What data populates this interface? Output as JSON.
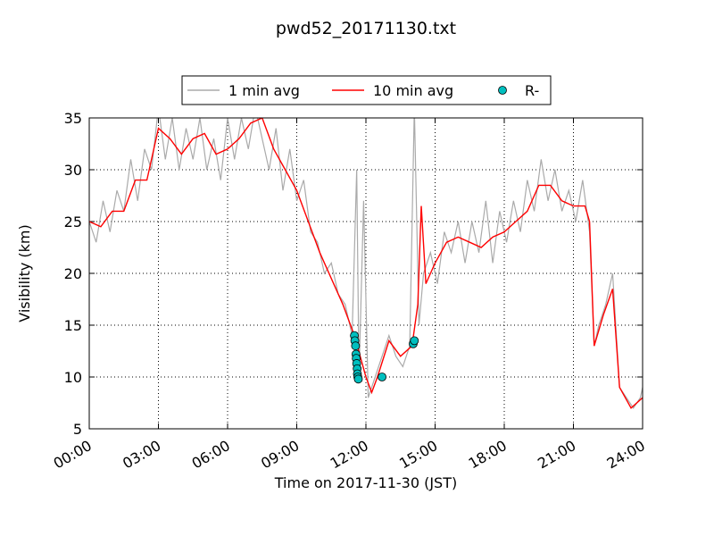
{
  "chart_data": {
    "type": "line",
    "title": "pwd52_20171130.txt",
    "xlabel": "Time on 2017-11-30 (JST)",
    "ylabel": "Visibility (km)",
    "xlim": [
      0,
      24
    ],
    "xticks": [
      {
        "value": 0,
        "label": "00:00"
      },
      {
        "value": 3,
        "label": "03:00"
      },
      {
        "value": 6,
        "label": "06:00"
      },
      {
        "value": 9,
        "label": "09:00"
      },
      {
        "value": 12,
        "label": "12:00"
      },
      {
        "value": 15,
        "label": "15:00"
      },
      {
        "value": 18,
        "label": "18:00"
      },
      {
        "value": 21,
        "label": "21:00"
      },
      {
        "value": 24,
        "label": "24:00"
      }
    ],
    "ylim": [
      5,
      35
    ],
    "yticks": [
      5,
      10,
      15,
      20,
      25,
      30,
      35
    ],
    "grid": true,
    "legend": "top",
    "series": [
      {
        "name": "1 min avg",
        "color": "#aaaaaa",
        "style": "line",
        "x": [
          0,
          0.3,
          0.6,
          0.9,
          1.2,
          1.5,
          1.8,
          2.1,
          2.4,
          2.7,
          3,
          3.3,
          3.6,
          3.9,
          4.2,
          4.5,
          4.8,
          5.1,
          5.4,
          5.7,
          6,
          6.3,
          6.6,
          6.9,
          7.2,
          7.5,
          7.8,
          8.1,
          8.4,
          8.7,
          9,
          9.3,
          9.6,
          9.9,
          10.2,
          10.5,
          10.8,
          11.1,
          11.4,
          11.6,
          11.7,
          11.9,
          12.1,
          12.4,
          12.7,
          13,
          13.3,
          13.6,
          13.9,
          14.1,
          14.3,
          14.5,
          14.8,
          15.1,
          15.4,
          15.7,
          16,
          16.3,
          16.6,
          16.9,
          17.2,
          17.5,
          17.8,
          18.1,
          18.4,
          18.7,
          19,
          19.3,
          19.6,
          19.9,
          20.2,
          20.5,
          20.8,
          21.1,
          21.4,
          21.7,
          21.9,
          22.1,
          22.4,
          22.7,
          23,
          23.3,
          23.6,
          23.9,
          24
        ],
        "values": [
          25,
          23,
          27,
          24,
          28,
          26,
          31,
          27,
          32,
          30,
          36,
          31,
          35,
          30,
          34,
          31,
          35,
          30,
          33,
          29,
          35,
          31,
          35,
          32,
          36,
          33,
          30,
          34,
          28,
          32,
          27,
          29,
          24,
          23,
          20,
          21,
          18,
          17,
          14,
          30,
          10,
          27,
          8,
          10,
          12,
          14,
          12,
          11,
          13,
          36,
          15,
          20,
          22,
          19,
          24,
          22,
          25,
          21,
          25,
          22,
          27,
          21,
          26,
          23,
          27,
          24,
          29,
          26,
          31,
          27,
          30,
          26,
          28,
          25,
          29,
          24,
          13,
          15,
          17,
          20,
          9,
          8,
          7,
          8,
          9
        ]
      },
      {
        "name": "10 min avg",
        "color": "#ff0000",
        "style": "line",
        "x": [
          0,
          0.5,
          1,
          1.5,
          2,
          2.5,
          3,
          3.5,
          4,
          4.5,
          5,
          5.5,
          6,
          6.5,
          7,
          7.5,
          8,
          8.5,
          9,
          9.5,
          10,
          10.5,
          11,
          11.5,
          12,
          12.25,
          12.5,
          13,
          13.5,
          14,
          14.25,
          14.4,
          14.6,
          15,
          15.5,
          16,
          16.5,
          17,
          17.5,
          18,
          18.5,
          19,
          19.5,
          20,
          20.5,
          21,
          21.5,
          21.7,
          21.9,
          22.3,
          22.7,
          23,
          23.5,
          24
        ],
        "values": [
          25,
          24.5,
          26,
          26,
          29,
          29,
          34,
          33,
          31.5,
          33,
          33.5,
          31.5,
          32,
          33,
          34.5,
          35,
          32,
          30,
          28,
          25,
          22,
          19.5,
          17,
          14,
          10,
          8.5,
          10,
          13.5,
          12,
          13,
          17,
          26.5,
          19,
          21,
          23,
          23.5,
          23,
          22.5,
          23.5,
          24,
          25,
          26,
          28.5,
          28.5,
          27,
          26.5,
          26.5,
          25,
          13,
          16,
          18.5,
          9,
          7,
          8
        ]
      },
      {
        "name": "R-",
        "color": "#00bfbf",
        "style": "marker",
        "x": [
          11.5,
          11.52,
          11.55,
          11.57,
          11.58,
          11.6,
          11.62,
          11.63,
          11.65,
          11.67,
          12.7,
          14.05,
          14.1
        ],
        "values": [
          14,
          13.5,
          13,
          12.2,
          11.8,
          11.3,
          10.8,
          10.3,
          10,
          9.8,
          10,
          13.2,
          13.5
        ]
      }
    ]
  }
}
